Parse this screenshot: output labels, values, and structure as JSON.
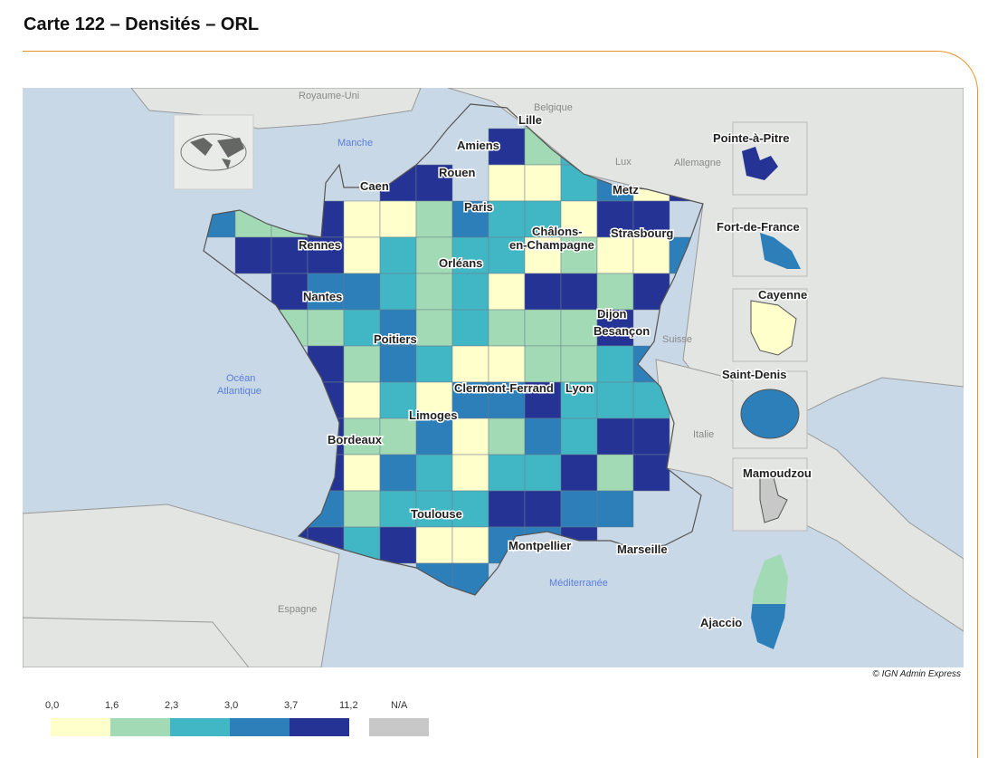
{
  "title": "Carte 122 – Densités – ORL",
  "credit": "© IGN Admin Express",
  "colors": {
    "sea": "#c9d8e6",
    "land": "#e3e5e2",
    "border": "#555555",
    "accent": "#e8932a"
  },
  "legend": {
    "ticks": [
      "0,0",
      "1,6",
      "2,3",
      "3,0",
      "3,7",
      "11,2"
    ],
    "classes": [
      {
        "range": "0,0 – 1,6",
        "color": "#ffffcc"
      },
      {
        "range": "1,6 – 2,3",
        "color": "#a1dab4"
      },
      {
        "range": "2,3 – 3,0",
        "color": "#41b6c4"
      },
      {
        "range": "3,0 – 3,7",
        "color": "#2c7fb8"
      },
      {
        "range": "3,7 – 11,2",
        "color": "#253494"
      }
    ],
    "na_label": "N/A",
    "na_color": "#c8c8c8"
  },
  "cities": [
    "Lille",
    "Amiens",
    "Rouen",
    "Caen",
    "Paris",
    "Metz",
    "Châlons-",
    "en-Champagne",
    "Strasbourg",
    "Rennes",
    "Orléans",
    "Nantes",
    "Dijon",
    "Besançon",
    "Poitiers",
    "Clermont-Ferrand",
    "Lyon",
    "Limoges",
    "Bordeaux",
    "Toulouse",
    "Montpellier",
    "Marseille",
    "Ajaccio"
  ],
  "overseas": [
    "Pointe-à-Pitre",
    "Fort-de-France",
    "Cayenne",
    "Saint-Denis",
    "Mamoudzou"
  ],
  "geo_labels": {
    "uk": "Royaume-Uni",
    "belgium": "Belgique",
    "lux": "Lux",
    "germany": "Allemagne",
    "switzerland": "Suisse",
    "italy": "Italie",
    "spain": "Espagne",
    "channel": "Manche",
    "ocean1": "Océan",
    "ocean2": "Atlantique",
    "med": "Méditerranée"
  }
}
